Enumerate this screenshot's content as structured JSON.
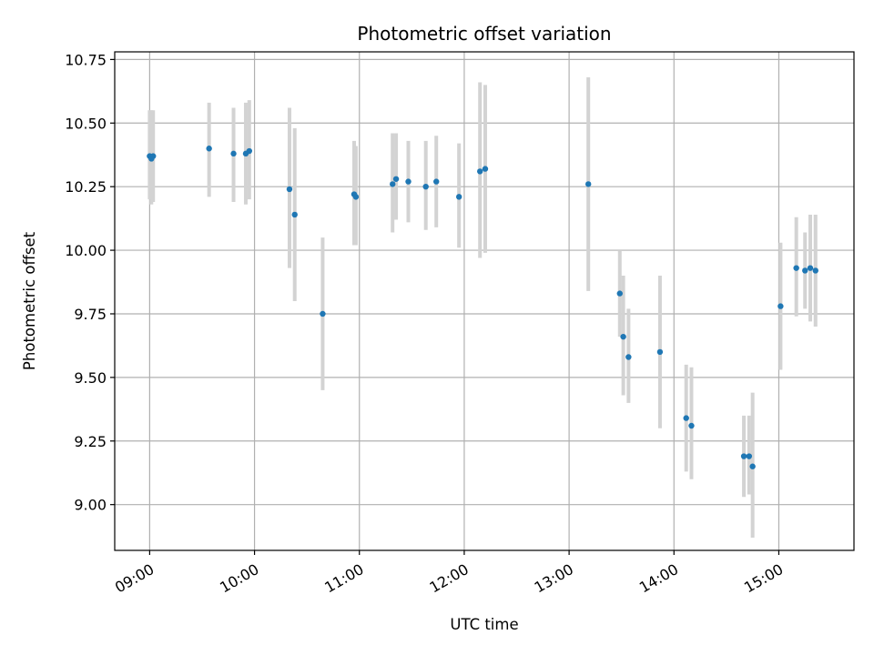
{
  "chart_data": {
    "type": "scatter",
    "title": "Photometric offset variation",
    "xlabel": "UTC time",
    "ylabel": "Photometric offset",
    "x_tick_labels": [
      "09:00",
      "10:00",
      "11:00",
      "12:00",
      "13:00",
      "14:00",
      "15:00"
    ],
    "y_tick_labels": [
      "9.00",
      "9.25",
      "9.50",
      "9.75",
      "10.00",
      "10.25",
      "10.50",
      "10.75"
    ],
    "x_ticks_minutes": [
      540,
      600,
      660,
      720,
      780,
      840,
      900
    ],
    "y_ticks": [
      9.0,
      9.25,
      9.5,
      9.75,
      10.0,
      10.25,
      10.5,
      10.75
    ],
    "xlim": [
      "08:40",
      "15:43"
    ],
    "ylim": [
      8.82,
      10.78
    ],
    "grid": true,
    "marker_color": "#1f77b4",
    "errorbar_color": "#d3d3d3",
    "points": [
      {
        "x": "09:00",
        "y": 10.37,
        "low": 10.2,
        "high": 10.55
      },
      {
        "x": "09:01",
        "y": 10.36,
        "low": 10.18,
        "high": 10.55
      },
      {
        "x": "09:02",
        "y": 10.37,
        "low": 10.19,
        "high": 10.55
      },
      {
        "x": "09:34",
        "y": 10.4,
        "low": 10.21,
        "high": 10.58
      },
      {
        "x": "09:48",
        "y": 10.38,
        "low": 10.19,
        "high": 10.56
      },
      {
        "x": "09:55",
        "y": 10.38,
        "low": 10.18,
        "high": 10.58
      },
      {
        "x": "09:57",
        "y": 10.39,
        "low": 10.2,
        "high": 10.59
      },
      {
        "x": "10:20",
        "y": 10.24,
        "low": 9.93,
        "high": 10.56
      },
      {
        "x": "10:23",
        "y": 10.14,
        "low": 9.8,
        "high": 10.48
      },
      {
        "x": "10:39",
        "y": 9.75,
        "low": 9.45,
        "high": 10.05
      },
      {
        "x": "10:57",
        "y": 10.22,
        "low": 10.02,
        "high": 10.43
      },
      {
        "x": "10:58",
        "y": 10.21,
        "low": 10.02,
        "high": 10.41
      },
      {
        "x": "11:19",
        "y": 10.26,
        "low": 10.07,
        "high": 10.46
      },
      {
        "x": "11:21",
        "y": 10.28,
        "low": 10.12,
        "high": 10.46
      },
      {
        "x": "11:28",
        "y": 10.27,
        "low": 10.11,
        "high": 10.43
      },
      {
        "x": "11:38",
        "y": 10.25,
        "low": 10.08,
        "high": 10.43
      },
      {
        "x": "11:44",
        "y": 10.27,
        "low": 10.09,
        "high": 10.45
      },
      {
        "x": "11:57",
        "y": 10.21,
        "low": 10.01,
        "high": 10.42
      },
      {
        "x": "12:09",
        "y": 10.31,
        "low": 9.97,
        "high": 10.66
      },
      {
        "x": "12:12",
        "y": 10.32,
        "low": 9.99,
        "high": 10.65
      },
      {
        "x": "13:11",
        "y": 10.26,
        "low": 9.84,
        "high": 10.68
      },
      {
        "x": "13:29",
        "y": 9.83,
        "low": 9.66,
        "high": 10.0
      },
      {
        "x": "13:31",
        "y": 9.66,
        "low": 9.43,
        "high": 9.9
      },
      {
        "x": "13:34",
        "y": 9.58,
        "low": 9.4,
        "high": 9.77
      },
      {
        "x": "13:52",
        "y": 9.6,
        "low": 9.3,
        "high": 9.9
      },
      {
        "x": "14:07",
        "y": 9.34,
        "low": 9.13,
        "high": 9.55
      },
      {
        "x": "14:10",
        "y": 9.31,
        "low": 9.1,
        "high": 9.54
      },
      {
        "x": "14:40",
        "y": 9.19,
        "low": 9.03,
        "high": 9.35
      },
      {
        "x": "14:43",
        "y": 9.19,
        "low": 9.04,
        "high": 9.35
      },
      {
        "x": "14:45",
        "y": 9.15,
        "low": 8.87,
        "high": 9.44
      },
      {
        "x": "15:01",
        "y": 9.78,
        "low": 9.53,
        "high": 10.03
      },
      {
        "x": "15:10",
        "y": 9.93,
        "low": 9.74,
        "high": 10.13
      },
      {
        "x": "15:15",
        "y": 9.92,
        "low": 9.77,
        "high": 10.07
      },
      {
        "x": "15:18",
        "y": 9.93,
        "low": 9.72,
        "high": 10.14
      },
      {
        "x": "15:21",
        "y": 9.92,
        "low": 9.7,
        "high": 10.14
      }
    ]
  }
}
